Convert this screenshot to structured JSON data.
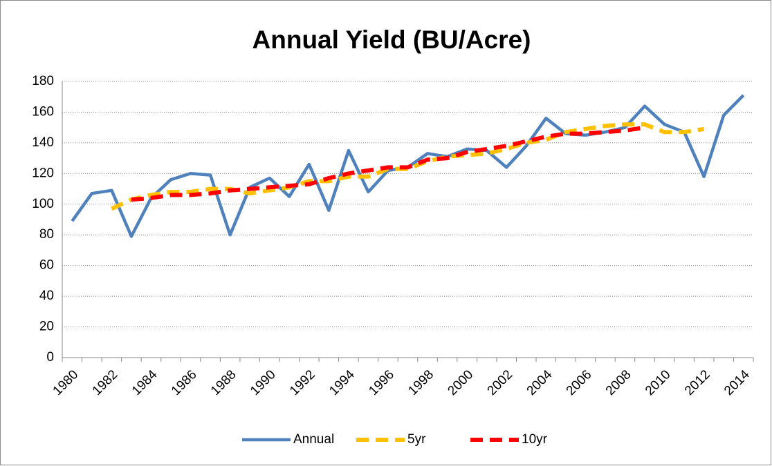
{
  "chart_data": {
    "type": "line",
    "title": "Annual Yield (BU/Acre)",
    "categories": [
      "1980",
      null,
      "1982",
      null,
      "1984",
      null,
      "1986",
      null,
      "1988",
      null,
      "1990",
      null,
      "1992",
      null,
      "1994",
      null,
      "1996",
      null,
      "1998",
      null,
      "2000",
      null,
      "2002",
      null,
      "2004",
      null,
      "2006",
      null,
      "2008",
      null,
      "2010",
      null,
      "2012",
      null,
      "2014"
    ],
    "series": [
      {
        "name": "Annual",
        "color": "#4f81bd",
        "dash": false,
        "values": [
          89,
          107,
          109,
          79,
          104,
          116,
          120,
          119,
          80,
          111,
          117,
          105,
          126,
          96,
          135,
          108,
          122,
          124,
          133,
          131,
          136,
          135,
          124,
          138,
          156,
          146,
          145,
          147,
          150,
          164,
          152,
          147,
          118,
          158,
          171
        ]
      },
      {
        "name": "5yr",
        "color": "#ffc000",
        "dash": true,
        "values": [
          null,
          null,
          97,
          103,
          106,
          108,
          108,
          110,
          110,
          107,
          109,
          111,
          115,
          115,
          118,
          118,
          123,
          123,
          128,
          131,
          132,
          133,
          136,
          140,
          142,
          147,
          149,
          151,
          152,
          152,
          147,
          147,
          149,
          null,
          null
        ]
      },
      {
        "name": "10yr",
        "color": "#ff0000",
        "dash": true,
        "values": [
          null,
          null,
          null,
          103,
          104,
          106,
          106,
          107,
          109,
          110,
          111,
          112,
          113,
          117,
          120,
          122,
          124,
          124,
          129,
          130,
          134,
          136,
          138,
          141,
          144,
          146,
          146,
          147,
          148,
          150,
          null,
          null,
          null,
          null,
          null
        ]
      }
    ],
    "ylim": [
      0,
      180
    ],
    "yticks": [
      0,
      20,
      40,
      60,
      80,
      100,
      120,
      140,
      160,
      180
    ],
    "grid": true,
    "legend": "bottom"
  }
}
